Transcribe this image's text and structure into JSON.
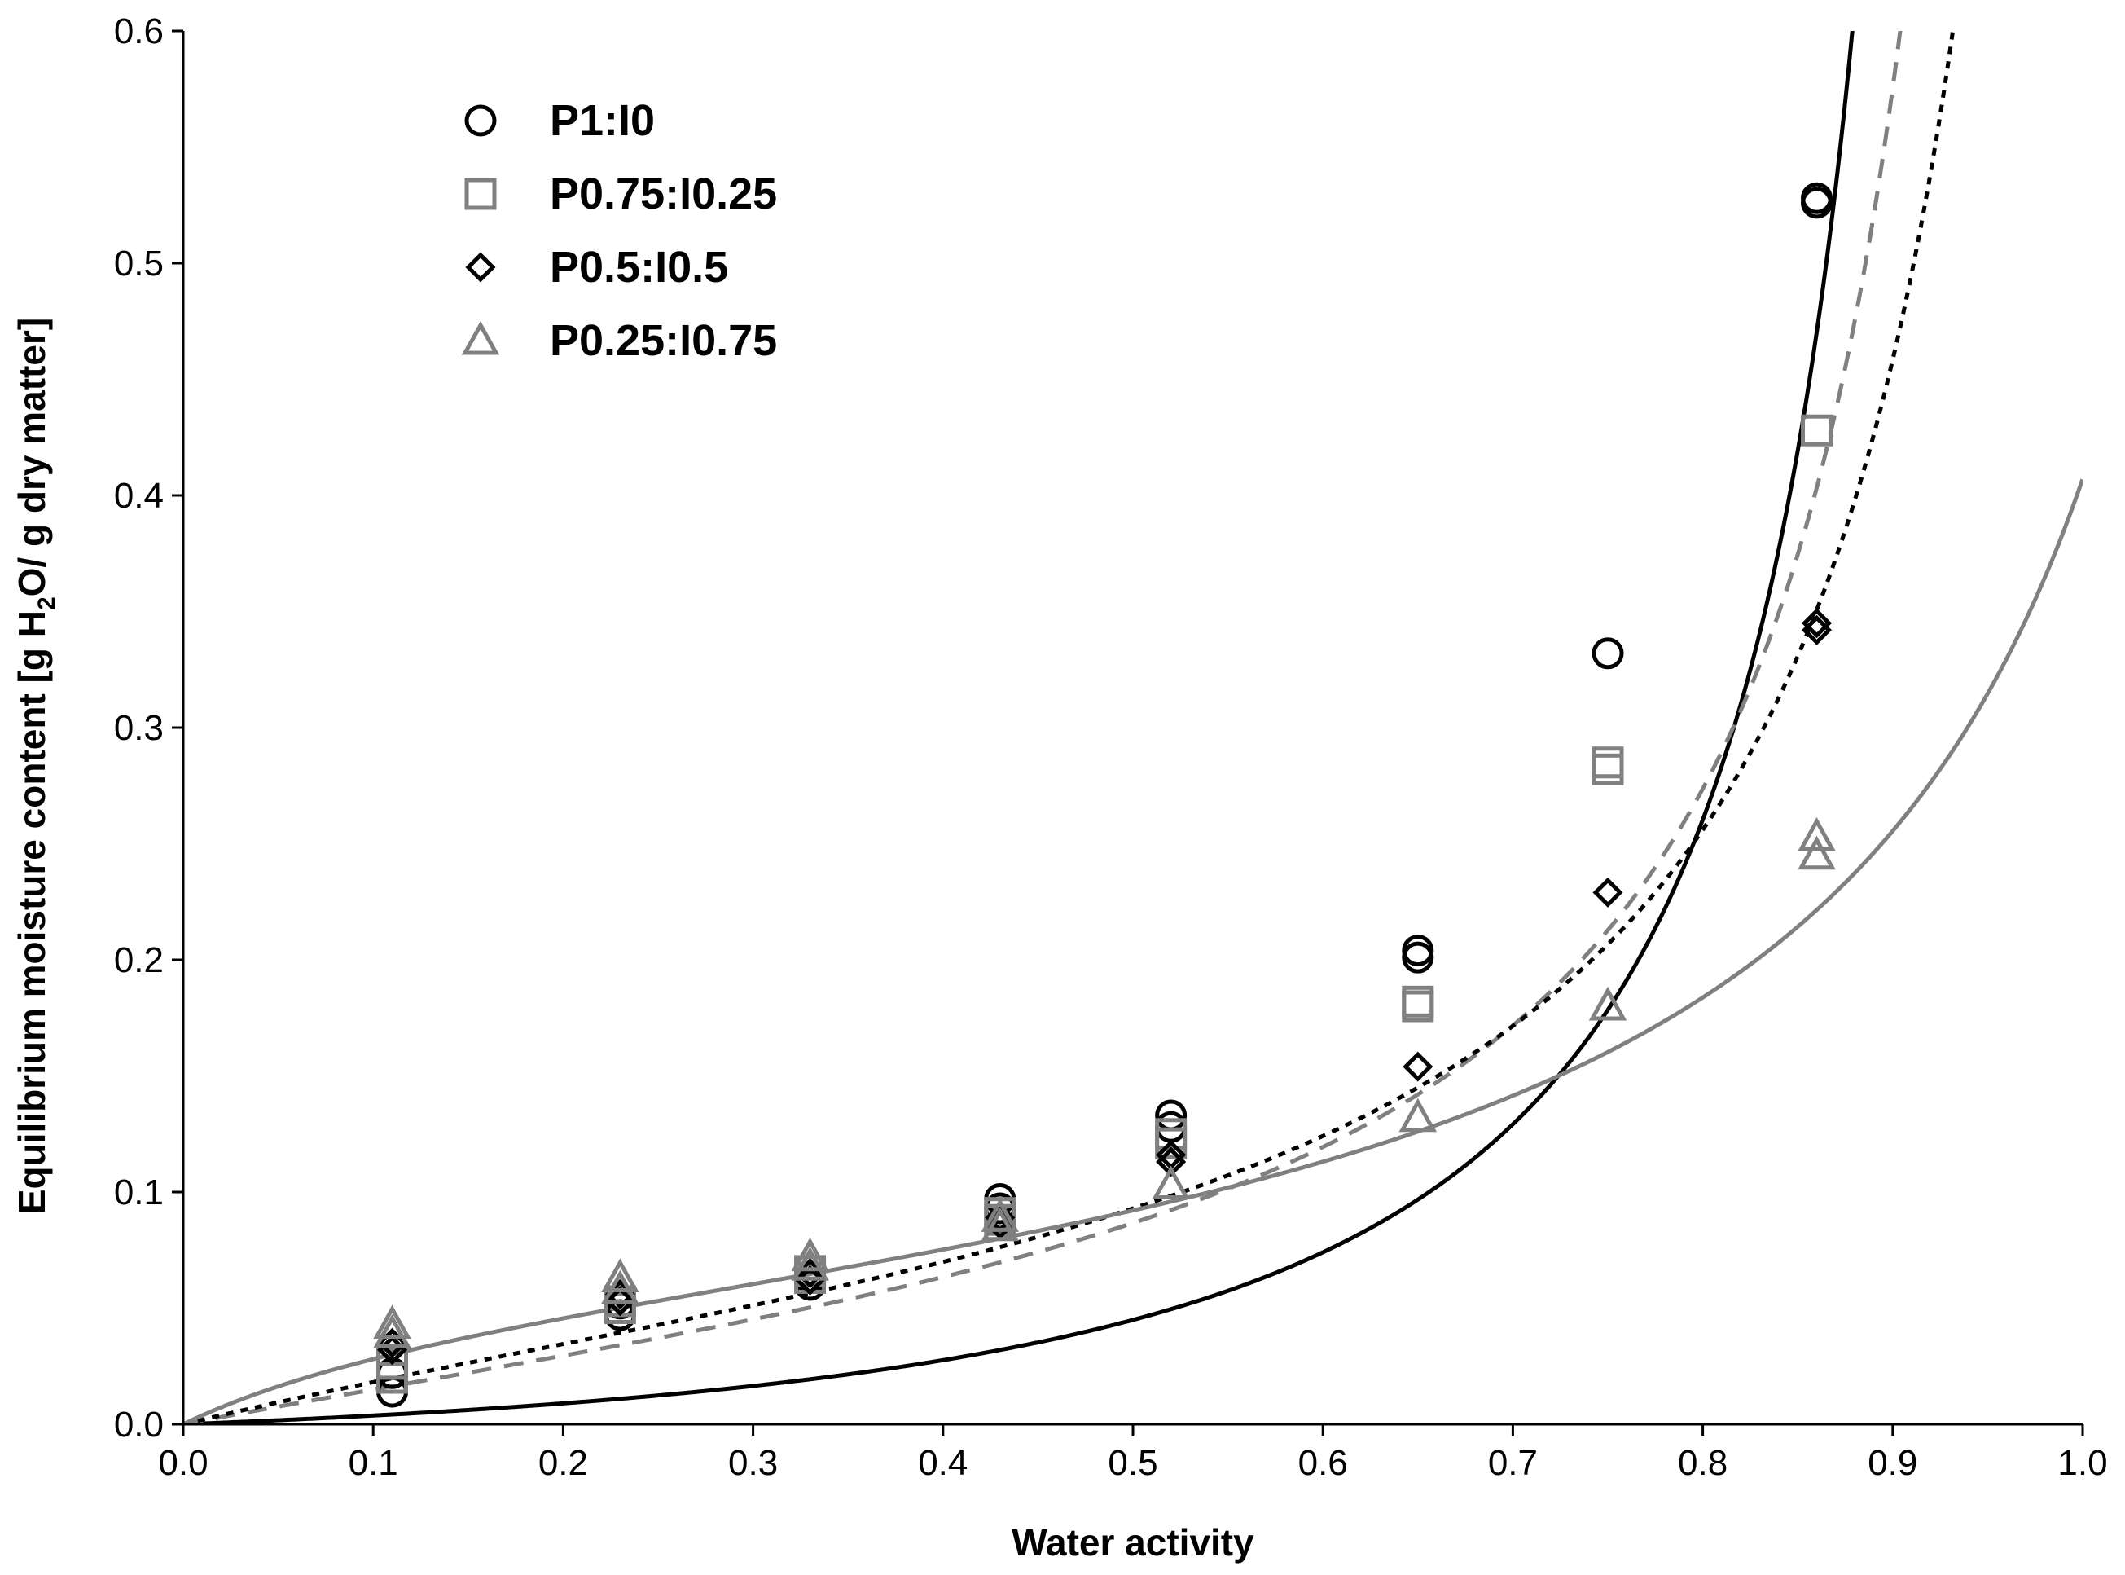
{
  "chart_data": {
    "type": "scatter",
    "xlabel": "Water activity",
    "ylabel": {
      "prefix": "Equilibrium moisture content [g H",
      "subscript": "2",
      "suffix": "O/ g dry matter]"
    },
    "xlim": [
      0.0,
      1.0
    ],
    "ylim": [
      0.0,
      0.6
    ],
    "xticks": [
      0.0,
      0.1,
      0.2,
      0.3,
      0.4,
      0.5,
      0.6,
      0.7,
      0.8,
      0.9,
      1.0
    ],
    "yticks": [
      0.0,
      0.1,
      0.2,
      0.3,
      0.4,
      0.5,
      0.6
    ],
    "xtick_labels": [
      "0.0",
      "0.1",
      "0.2",
      "0.3",
      "0.4",
      "0.5",
      "0.6",
      "0.7",
      "0.8",
      "0.9",
      "1.0"
    ],
    "ytick_labels": [
      "0.0",
      "0.1",
      "0.2",
      "0.3",
      "0.4",
      "0.5",
      "0.6"
    ],
    "grid": false,
    "legend_position": "top-left",
    "series": [
      {
        "name": "P1:I0",
        "marker": "circle",
        "color": "#000000",
        "fit_style": "solid",
        "fit": {
          "Xm": 0.0614,
          "C": 0.5,
          "K": 1.04
        },
        "points": [
          [
            0.11,
            0.014
          ],
          [
            0.11,
            0.022
          ],
          [
            0.23,
            0.047
          ],
          [
            0.23,
            0.052
          ],
          [
            0.33,
            0.06
          ],
          [
            0.33,
            0.063
          ],
          [
            0.43,
            0.093
          ],
          [
            0.43,
            0.097
          ],
          [
            0.52,
            0.128
          ],
          [
            0.52,
            0.133
          ],
          [
            0.65,
            0.201
          ],
          [
            0.65,
            0.204
          ],
          [
            0.75,
            0.332
          ],
          [
            0.86,
            0.526
          ],
          [
            0.86,
            0.528
          ]
        ]
      },
      {
        "name": "P0.75:I0.25",
        "marker": "square",
        "color": "#808080",
        "fit_style": "dashed",
        "fit": {
          "Xm": 0.06,
          "C": 2.6,
          "K": 1.0
        },
        "points": [
          [
            0.11,
            0.02
          ],
          [
            0.11,
            0.026
          ],
          [
            0.23,
            0.05
          ],
          [
            0.23,
            0.053
          ],
          [
            0.33,
            0.063
          ],
          [
            0.33,
            0.066
          ],
          [
            0.43,
            0.088
          ],
          [
            0.43,
            0.091
          ],
          [
            0.52,
            0.121
          ],
          [
            0.52,
            0.125
          ],
          [
            0.65,
            0.18
          ],
          [
            0.65,
            0.182
          ],
          [
            0.75,
            0.282
          ],
          [
            0.75,
            0.285
          ],
          [
            0.86,
            0.428
          ]
        ]
      },
      {
        "name": "P0.5:I0.5",
        "marker": "diamond",
        "color": "#000000",
        "fit_style": "dotted",
        "fit": {
          "Xm": 0.0645,
          "C": 3.2,
          "K": 0.962
        },
        "points": [
          [
            0.11,
            0.032
          ],
          [
            0.11,
            0.035
          ],
          [
            0.23,
            0.053
          ],
          [
            0.23,
            0.056
          ],
          [
            0.33,
            0.062
          ],
          [
            0.33,
            0.065
          ],
          [
            0.43,
            0.086
          ],
          [
            0.43,
            0.089
          ],
          [
            0.52,
            0.113
          ],
          [
            0.52,
            0.116
          ],
          [
            0.65,
            0.154
          ],
          [
            0.75,
            0.229
          ],
          [
            0.86,
            0.342
          ],
          [
            0.86,
            0.345
          ]
        ]
      },
      {
        "name": "P0.25:I0.75",
        "marker": "triangle",
        "color": "#808080",
        "fit_style": "solid",
        "fit": {
          "Xm": 0.0625,
          "C": 7.5,
          "K": 0.85
        },
        "points": [
          [
            0.11,
            0.039
          ],
          [
            0.11,
            0.043
          ],
          [
            0.23,
            0.058
          ],
          [
            0.23,
            0.063
          ],
          [
            0.33,
            0.068
          ],
          [
            0.33,
            0.072
          ],
          [
            0.43,
            0.085
          ],
          [
            0.43,
            0.089
          ],
          [
            0.52,
            0.103
          ],
          [
            0.65,
            0.132
          ],
          [
            0.75,
            0.18
          ],
          [
            0.86,
            0.245
          ],
          [
            0.86,
            0.253
          ]
        ]
      }
    ]
  }
}
